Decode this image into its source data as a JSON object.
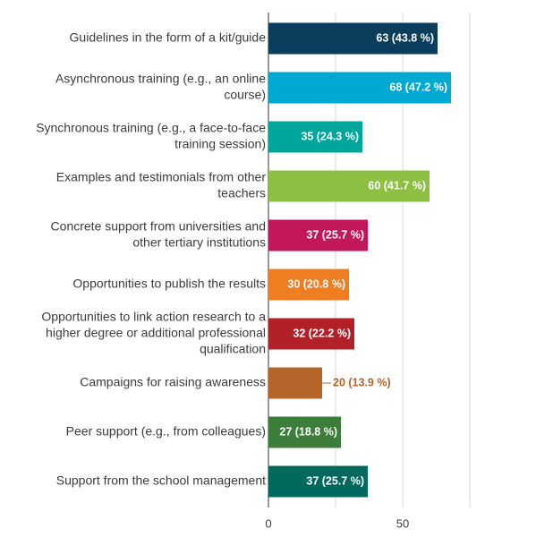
{
  "chart_data": {
    "type": "bar",
    "orientation": "horizontal",
    "categories": [
      [
        "Guidelines in the form of a kit/guide"
      ],
      [
        "Asynchronous training (e.g., an online",
        "course)"
      ],
      [
        "Synchronous training (e.g., a face-to-face",
        "training session)"
      ],
      [
        "Examples and testimonials from other",
        "teachers"
      ],
      [
        "Concrete support from universities and",
        "other tertiary institutions"
      ],
      [
        "Opportunities to publish the results"
      ],
      [
        "Opportunities to link action research to a",
        "higher degree or additional professional",
        "qualification"
      ],
      [
        "Campaigns for raising awareness"
      ],
      [
        "Peer support (e.g., from colleagues)"
      ],
      [
        "Support from the school management"
      ]
    ],
    "values": [
      63,
      68,
      35,
      60,
      37,
      30,
      32,
      20,
      27,
      37
    ],
    "data_labels": [
      "63 (43.8 %)",
      "68 (47.2 %)",
      "35 (24.3 %)",
      "60 (41.7 %)",
      "37 (25.7 %)",
      "30 (20.8 %)",
      "32 (22.2 %)",
      "20 (13.9 %)",
      "27 (18.8 %)",
      "37 (25.7 %)"
    ],
    "colors": [
      "#0b3d5c",
      "#00a9d1",
      "#00a69b",
      "#8cbf42",
      "#c2185b",
      "#ef7d22",
      "#b22028",
      "#b5652a",
      "#3d7d3a",
      "#00695c"
    ],
    "label_outside": [
      false,
      false,
      false,
      false,
      false,
      false,
      false,
      true,
      false,
      false
    ],
    "xlim": [
      0,
      100
    ],
    "x_ticks": [
      0,
      50
    ],
    "x_gridlines": [
      0,
      25,
      50,
      75,
      100
    ],
    "grid": true,
    "title": "",
    "xlabel": "",
    "ylabel": ""
  }
}
